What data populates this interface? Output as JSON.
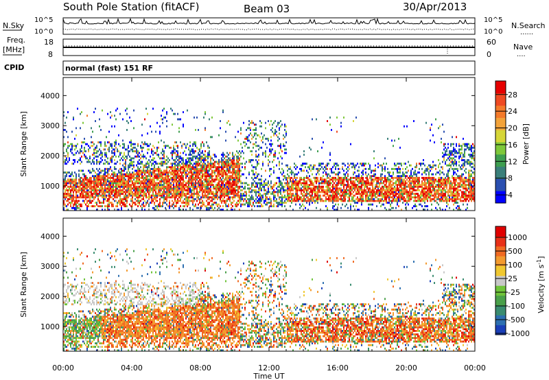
{
  "header": {
    "station": "South Pole Station (fitACF)",
    "beam": "Beam 03",
    "date": "30/Apr/2013"
  },
  "side_labels": {
    "nsky": "N.Sky",
    "nsearch": "N.Search",
    "freq_line1": "Freq.",
    "freq_line2": "[MHz]",
    "nave": "Nave",
    "cpid": "CPID",
    "dots": "......",
    "dots_short": "...."
  },
  "strip_ticks": {
    "noise_left": [
      "10^5",
      "10^0"
    ],
    "noise_right": [
      "10^5",
      "10^0"
    ],
    "freq_left": [
      "18",
      "8"
    ],
    "nave_right": [
      "60",
      "0"
    ]
  },
  "cpid_text": "normal (fast) 151 RF",
  "chart_data": [
    {
      "type": "heatmap",
      "name": "power",
      "ylabel": "Slant Range [km]",
      "yticks": [
        1000,
        2000,
        3000,
        4000
      ],
      "ylim": [
        180,
        4600
      ],
      "xlim_hours": [
        0,
        24
      ],
      "colorbar": {
        "label": "Power [dB]",
        "tick_labels": [
          "4",
          "8",
          "12",
          "16",
          "20",
          "24",
          "28"
        ],
        "colors": [
          "#0000ff",
          "#2a4fb0",
          "#3a7f7a",
          "#3e9e50",
          "#7ec83a",
          "#d6d638",
          "#f3a33a",
          "#f47a2a",
          "#ef4a22",
          "#e60000"
        ]
      }
    },
    {
      "type": "heatmap",
      "name": "velocity",
      "ylabel": "Slant Range [km]",
      "yticks": [
        1000,
        2000,
        3000,
        4000
      ],
      "ylim": [
        180,
        4600
      ],
      "xlim_hours": [
        0,
        24
      ],
      "xlabel": "Time UT",
      "xtick_labels": [
        "00:00",
        "04:00",
        "08:00",
        "12:00",
        "16:00",
        "20:00",
        "00:00"
      ],
      "colorbar": {
        "label": "Velocity [m s",
        "label_sup": "-1",
        "label_end": "]",
        "tick_labels": [
          "1000",
          "500",
          "100",
          "25",
          "-25",
          "-100",
          "-500",
          "-1000"
        ],
        "colors": [
          "#1a3fb8",
          "#2d6fb0",
          "#3a8c70",
          "#4aa04a",
          "#6fc43a",
          "#c8c8c8",
          "#f0c830",
          "#f39a2e",
          "#f06a22",
          "#e83018",
          "#e00000"
        ]
      }
    }
  ]
}
